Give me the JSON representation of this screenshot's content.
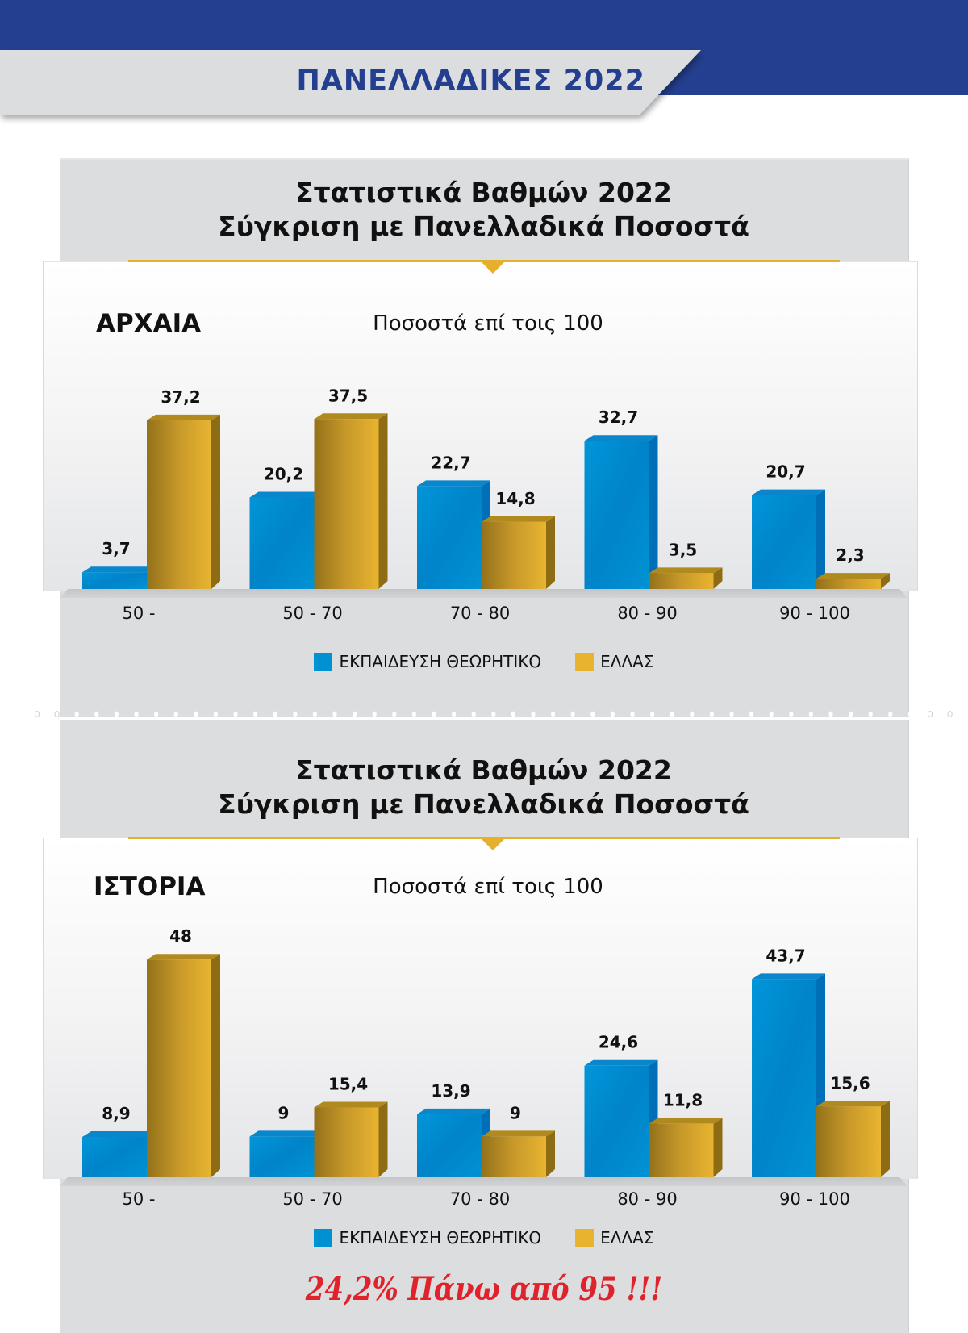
{
  "header": {
    "title": "ΠΑΝΕΛΛΑΔΙΚΕΣ 2022",
    "band_color": "#243f8f",
    "ribbon_color": "#dcdddf"
  },
  "colors": {
    "series_blue": "#0091d3",
    "series_gold": "#e8b32e",
    "accent_gold_line": "#e6b02c",
    "highlight_red": "#e0222a"
  },
  "panels": [
    {
      "title_line1": "Στατιστικά Βαθμών 2022",
      "title_line2": "Σύγκριση με Πανελλαδικά Ποσοστά",
      "subject": "ΑΡΧΑΙΑ",
      "unit_label": "Ποσοστά επί τοις 100",
      "legend": [
        "ΕΚΠΑΙΔΕΥΣΗ ΘΕΩΡΗΤΙΚΟ",
        "ΕΛΛΑΣ"
      ]
    },
    {
      "title_line1": "Στατιστικά Βαθμών 2022",
      "title_line2": "Σύγκριση με Πανελλαδικά Ποσοστά",
      "subject": "ΙΣΤΟΡΙΑ",
      "unit_label": "Ποσοστά επί τοις 100",
      "legend": [
        "ΕΚΠΑΙΔΕΥΣΗ ΘΕΩΡΗΤΙΚΟ",
        "ΕΛΛΑΣ"
      ],
      "highlight": "24,2% Πάνω από 95 !!!"
    }
  ],
  "chart_data": [
    {
      "type": "bar",
      "title": "ΑΡΧΑΙΑ",
      "subtitle": "Ποσοστά επί τοις 100",
      "categories": [
        "50 -",
        "50 - 70",
        "70 - 80",
        "80 - 90",
        "90 - 100"
      ],
      "series": [
        {
          "name": "ΕΚΠΑΙΔΕΥΣΗ ΘΕΩΡΗΤΙΚΟ",
          "values": [
            3.7,
            20.2,
            22.7,
            32.7,
            20.7
          ],
          "labels": [
            "3,7",
            "20,2",
            "22,7",
            "32,7",
            "20,7"
          ]
        },
        {
          "name": "ΕΛΛΑΣ",
          "values": [
            37.2,
            37.5,
            14.8,
            3.5,
            2.3
          ],
          "labels": [
            "37,2",
            "37,5",
            "14,8",
            "3,5",
            "2,3"
          ]
        }
      ],
      "xlabel": "",
      "ylabel": "",
      "ylim": [
        0,
        50
      ],
      "grid": false,
      "legend_position": "bottom"
    },
    {
      "type": "bar",
      "title": "ΙΣΤΟΡΙΑ",
      "subtitle": "Ποσοστά επί τοις 100",
      "categories": [
        "50 -",
        "50 - 70",
        "70 - 80",
        "80 - 90",
        "90 - 100"
      ],
      "series": [
        {
          "name": "ΕΚΠΑΙΔΕΥΣΗ ΘΕΩΡΗΤΙΚΟ",
          "values": [
            8.9,
            9,
            13.9,
            24.6,
            43.7
          ],
          "labels": [
            "8,9",
            "9",
            "13,9",
            "24,6",
            "43,7"
          ]
        },
        {
          "name": "ΕΛΛΑΣ",
          "values": [
            48,
            15.4,
            9,
            11.8,
            15.6
          ],
          "labels": [
            "48",
            "15,4",
            "9",
            "11,8",
            "15,6"
          ]
        }
      ],
      "xlabel": "",
      "ylabel": "",
      "ylim": [
        0,
        50
      ],
      "grid": false,
      "legend_position": "bottom"
    }
  ]
}
